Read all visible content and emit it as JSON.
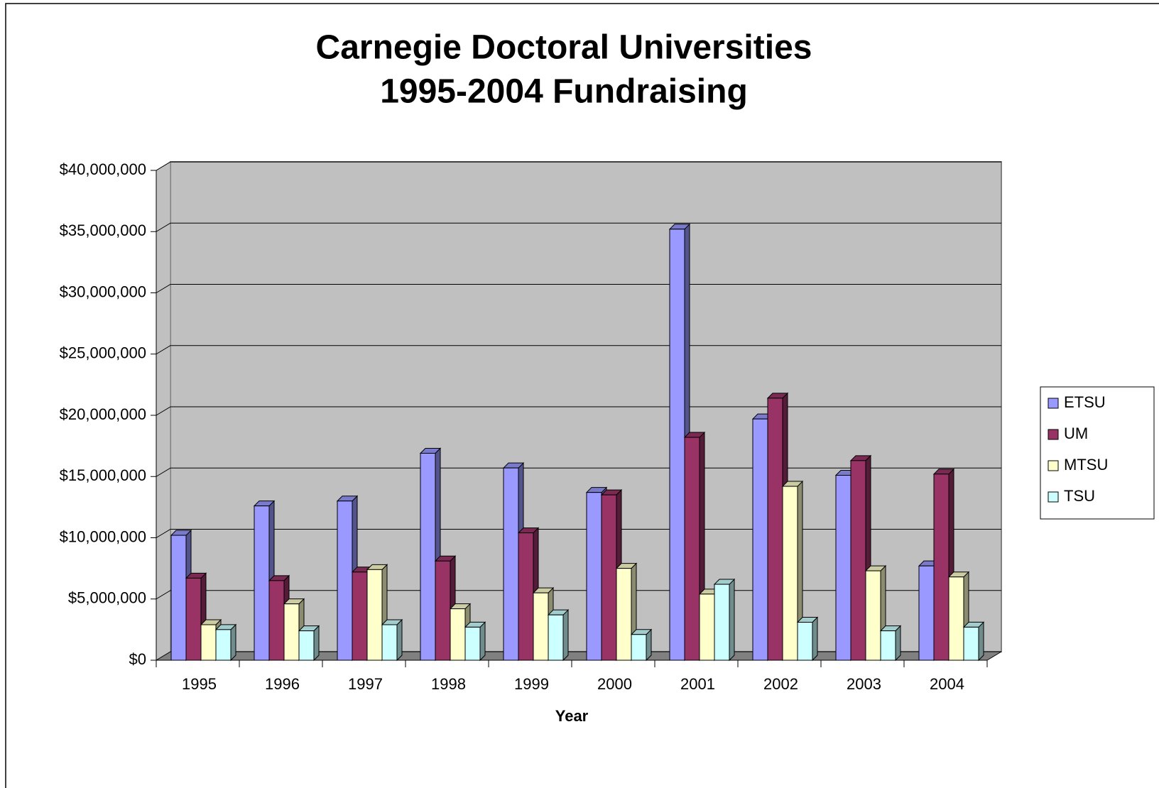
{
  "chart_data": {
    "type": "bar3d",
    "title": [
      "Carnegie Doctoral Universities",
      "1995-2004 Fundraising"
    ],
    "x_label": "Year",
    "categories": [
      "1995",
      "1996",
      "1997",
      "1998",
      "1999",
      "2000",
      "2001",
      "2002",
      "2003",
      "2004"
    ],
    "series": [
      {
        "name": "ETSU",
        "color": "#9999ff",
        "values": [
          10200000,
          12600000,
          13000000,
          16900000,
          15700000,
          13700000,
          35200000,
          19700000,
          15100000,
          7700000
        ]
      },
      {
        "name": "UM",
        "color": "#993366",
        "values": [
          6700000,
          6500000,
          7200000,
          8100000,
          10400000,
          13500000,
          18200000,
          21400000,
          16300000,
          15200000
        ]
      },
      {
        "name": "MTSU",
        "color": "#ffffcc",
        "values": [
          2900000,
          4600000,
          7400000,
          4200000,
          5500000,
          7500000,
          5400000,
          14200000,
          7300000,
          6800000
        ]
      },
      {
        "name": "TSU",
        "color": "#ccffff",
        "values": [
          2500000,
          2400000,
          2900000,
          2700000,
          3700000,
          2100000,
          6200000,
          3100000,
          2400000,
          2700000
        ]
      }
    ],
    "ylim": [
      0,
      40000000
    ],
    "yticks": [
      {
        "value": 0,
        "label": "$0"
      },
      {
        "value": 5000000,
        "label": "$5,000,000"
      },
      {
        "value": 10000000,
        "label": "$10,000,000"
      },
      {
        "value": 15000000,
        "label": "$15,000,000"
      },
      {
        "value": 20000000,
        "label": "$20,000,000"
      },
      {
        "value": 25000000,
        "label": "$25,000,000"
      },
      {
        "value": 30000000,
        "label": "$30,000,000"
      },
      {
        "value": 35000000,
        "label": "$35,000,000"
      },
      {
        "value": 40000000,
        "label": "$40,000,000"
      }
    ],
    "grid": true,
    "legend": "right"
  }
}
